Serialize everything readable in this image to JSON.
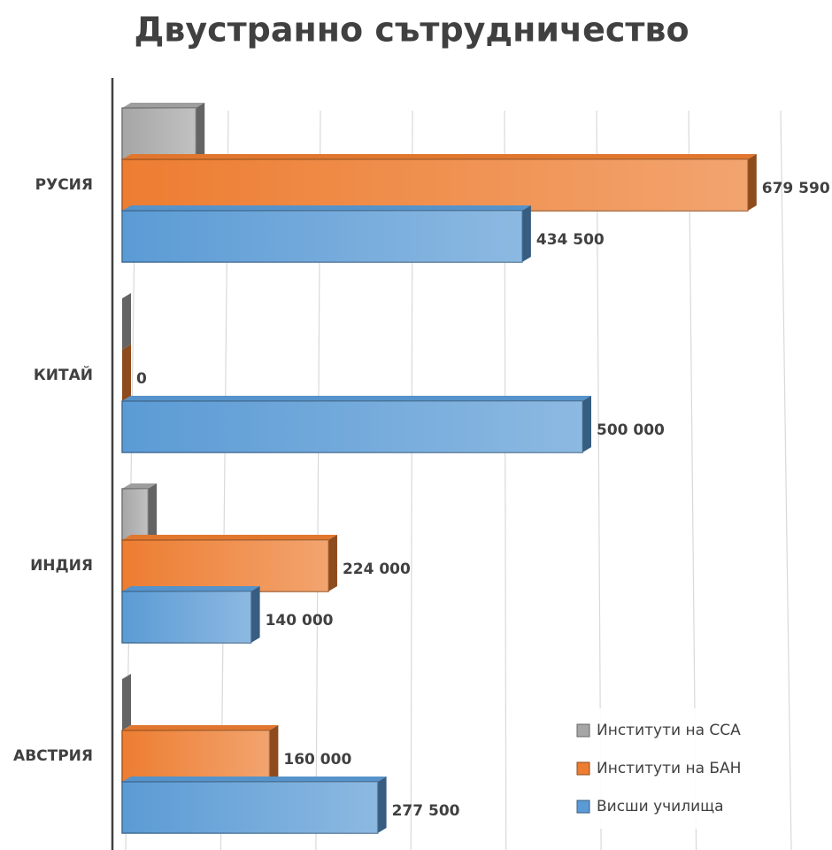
{
  "chart_data": {
    "type": "bar",
    "orientation": "horizontal",
    "title": "Двустранно сътрудничество",
    "categories": [
      "РУСИЯ",
      "КИТАЙ",
      "ИНДИЯ",
      "АВСТРИЯ"
    ],
    "series": [
      {
        "name": "Институти на ССА",
        "color": "#a6a6a6",
        "values": [
          80000,
          0,
          28000,
          0
        ]
      },
      {
        "name": "Институти на БАН",
        "color": "#ed7d31",
        "values": [
          679590,
          0,
          224000,
          160000
        ],
        "value_labels": [
          "679 590",
          "0",
          "224 000",
          "160 000"
        ]
      },
      {
        "name": "Висши училища",
        "color": "#5b9bd5",
        "values": [
          434500,
          500000,
          140000,
          277500
        ],
        "value_labels": [
          "434 500",
          "500 000",
          "140 000",
          "277 500"
        ]
      }
    ],
    "xlim": [
      0,
      700000
    ],
    "xticks": [
      0,
      100000,
      200000,
      300000,
      400000,
      500000,
      600000,
      700000
    ],
    "grid": true,
    "legend": "bottom-right"
  }
}
